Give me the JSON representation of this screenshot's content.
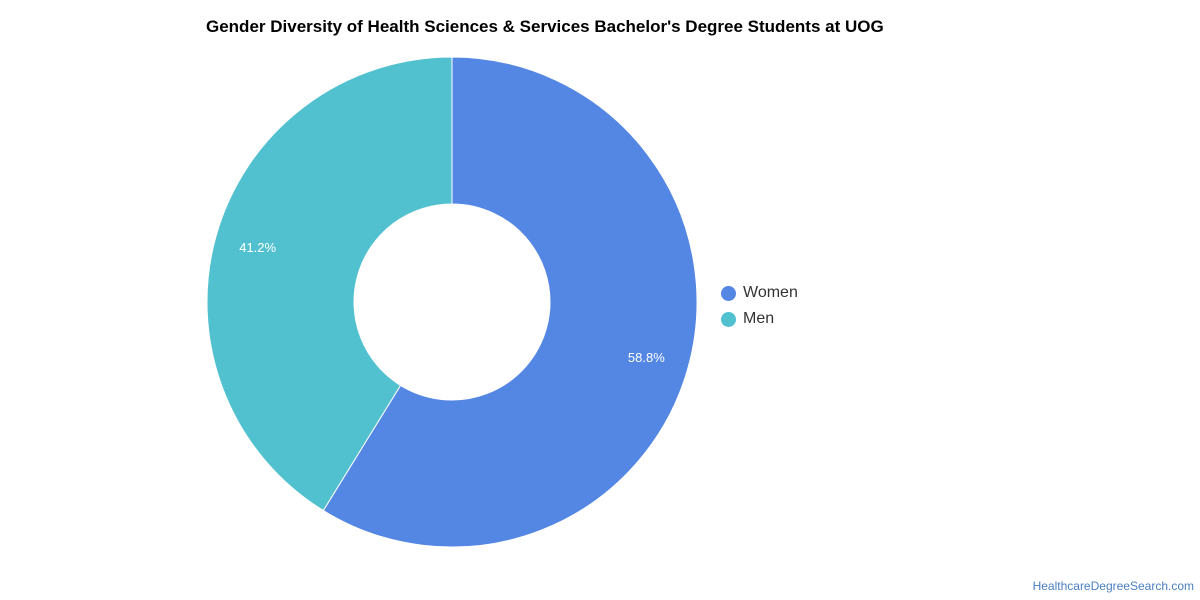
{
  "title": "Gender Diversity of Health Sciences & Services Bachelor's Degree Students at UOG",
  "watermark": "HealthcareDegreeSearch.com",
  "chart_data": {
    "type": "pie",
    "donut": true,
    "title": "Gender Diversity of Health Sciences & Services Bachelor's Degree Students at UOG",
    "legend_position": "right",
    "series": [
      {
        "name": "Women",
        "value": 58.8,
        "label": "58.8%",
        "color": "#5486e3"
      },
      {
        "name": "Men",
        "value": 41.2,
        "label": "41.2%",
        "color": "#52c1cf"
      }
    ]
  }
}
